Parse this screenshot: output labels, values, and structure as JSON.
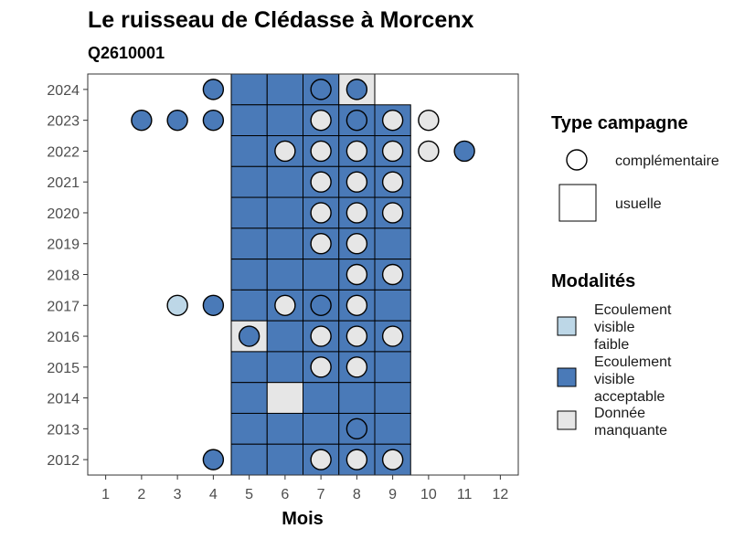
{
  "chart_data": {
    "type": "heatmap",
    "title": "Le ruisseau de Clédasse à Morcenx",
    "subtitle": "Q2610001",
    "xlabel": "Mois",
    "ylabel": "",
    "x_ticks": [
      1,
      2,
      3,
      4,
      5,
      6,
      7,
      8,
      9,
      10,
      11,
      12
    ],
    "y_ticks": [
      2012,
      2013,
      2014,
      2015,
      2016,
      2017,
      2018,
      2019,
      2020,
      2021,
      2022,
      2023,
      2024
    ],
    "xlim": [
      0.5,
      12.5
    ],
    "ylim": [
      2011.5,
      2024.5
    ],
    "colors": {
      "faible": "#bdd7e7",
      "acceptable": "#4a7ab8",
      "manquante": "#e6e6e6"
    },
    "legend_type": {
      "title": "Type campagne",
      "items": [
        {
          "shape": "circle",
          "label": "complémentaire"
        },
        {
          "shape": "square",
          "label": "usuelle"
        }
      ]
    },
    "legend_modalites": {
      "title": "Modalités",
      "items": [
        {
          "key": "faible",
          "lines": [
            "Ecoulement",
            "visible",
            "faible"
          ]
        },
        {
          "key": "acceptable",
          "lines": [
            "Ecoulement",
            "visible",
            "acceptable"
          ]
        },
        {
          "key": "manquante",
          "lines": [
            "Donnée",
            "manquante"
          ]
        }
      ]
    },
    "squares": [
      {
        "year": 2024,
        "month": 5,
        "m": "acceptable"
      },
      {
        "year": 2024,
        "month": 6,
        "m": "acceptable"
      },
      {
        "year": 2024,
        "month": 7,
        "m": "acceptable"
      },
      {
        "year": 2024,
        "month": 8,
        "m": "manquante"
      },
      {
        "year": 2023,
        "month": 5,
        "m": "acceptable"
      },
      {
        "year": 2023,
        "month": 6,
        "m": "acceptable"
      },
      {
        "year": 2023,
        "month": 7,
        "m": "acceptable"
      },
      {
        "year": 2023,
        "month": 8,
        "m": "acceptable"
      },
      {
        "year": 2023,
        "month": 9,
        "m": "acceptable"
      },
      {
        "year": 2022,
        "month": 5,
        "m": "acceptable"
      },
      {
        "year": 2022,
        "month": 6,
        "m": "acceptable"
      },
      {
        "year": 2022,
        "month": 7,
        "m": "acceptable"
      },
      {
        "year": 2022,
        "month": 8,
        "m": "acceptable"
      },
      {
        "year": 2022,
        "month": 9,
        "m": "acceptable"
      },
      {
        "year": 2021,
        "month": 5,
        "m": "acceptable"
      },
      {
        "year": 2021,
        "month": 6,
        "m": "acceptable"
      },
      {
        "year": 2021,
        "month": 7,
        "m": "acceptable"
      },
      {
        "year": 2021,
        "month": 8,
        "m": "acceptable"
      },
      {
        "year": 2021,
        "month": 9,
        "m": "acceptable"
      },
      {
        "year": 2020,
        "month": 5,
        "m": "acceptable"
      },
      {
        "year": 2020,
        "month": 6,
        "m": "acceptable"
      },
      {
        "year": 2020,
        "month": 7,
        "m": "acceptable"
      },
      {
        "year": 2020,
        "month": 8,
        "m": "acceptable"
      },
      {
        "year": 2020,
        "month": 9,
        "m": "acceptable"
      },
      {
        "year": 2019,
        "month": 5,
        "m": "acceptable"
      },
      {
        "year": 2019,
        "month": 6,
        "m": "acceptable"
      },
      {
        "year": 2019,
        "month": 7,
        "m": "acceptable"
      },
      {
        "year": 2019,
        "month": 8,
        "m": "acceptable"
      },
      {
        "year": 2019,
        "month": 9,
        "m": "acceptable"
      },
      {
        "year": 2018,
        "month": 5,
        "m": "acceptable"
      },
      {
        "year": 2018,
        "month": 6,
        "m": "acceptable"
      },
      {
        "year": 2018,
        "month": 7,
        "m": "acceptable"
      },
      {
        "year": 2018,
        "month": 8,
        "m": "acceptable"
      },
      {
        "year": 2018,
        "month": 9,
        "m": "acceptable"
      },
      {
        "year": 2017,
        "month": 5,
        "m": "acceptable"
      },
      {
        "year": 2017,
        "month": 6,
        "m": "acceptable"
      },
      {
        "year": 2017,
        "month": 7,
        "m": "acceptable"
      },
      {
        "year": 2017,
        "month": 8,
        "m": "acceptable"
      },
      {
        "year": 2017,
        "month": 9,
        "m": "acceptable"
      },
      {
        "year": 2016,
        "month": 5,
        "m": "manquante"
      },
      {
        "year": 2016,
        "month": 6,
        "m": "acceptable"
      },
      {
        "year": 2016,
        "month": 7,
        "m": "acceptable"
      },
      {
        "year": 2016,
        "month": 8,
        "m": "acceptable"
      },
      {
        "year": 2016,
        "month": 9,
        "m": "acceptable"
      },
      {
        "year": 2015,
        "month": 5,
        "m": "acceptable"
      },
      {
        "year": 2015,
        "month": 6,
        "m": "acceptable"
      },
      {
        "year": 2015,
        "month": 7,
        "m": "acceptable"
      },
      {
        "year": 2015,
        "month": 8,
        "m": "acceptable"
      },
      {
        "year": 2015,
        "month": 9,
        "m": "acceptable"
      },
      {
        "year": 2014,
        "month": 5,
        "m": "acceptable"
      },
      {
        "year": 2014,
        "month": 6,
        "m": "manquante"
      },
      {
        "year": 2014,
        "month": 7,
        "m": "acceptable"
      },
      {
        "year": 2014,
        "month": 8,
        "m": "acceptable"
      },
      {
        "year": 2014,
        "month": 9,
        "m": "acceptable"
      },
      {
        "year": 2013,
        "month": 5,
        "m": "acceptable"
      },
      {
        "year": 2013,
        "month": 6,
        "m": "acceptable"
      },
      {
        "year": 2013,
        "month": 7,
        "m": "acceptable"
      },
      {
        "year": 2013,
        "month": 8,
        "m": "acceptable"
      },
      {
        "year": 2013,
        "month": 9,
        "m": "acceptable"
      },
      {
        "year": 2012,
        "month": 5,
        "m": "acceptable"
      },
      {
        "year": 2012,
        "month": 6,
        "m": "acceptable"
      },
      {
        "year": 2012,
        "month": 7,
        "m": "acceptable"
      },
      {
        "year": 2012,
        "month": 8,
        "m": "acceptable"
      },
      {
        "year": 2012,
        "month": 9,
        "m": "acceptable"
      }
    ],
    "circles": [
      {
        "year": 2024,
        "month": 4,
        "m": "acceptable"
      },
      {
        "year": 2024,
        "month": 7,
        "m": "acceptable"
      },
      {
        "year": 2024,
        "month": 8,
        "m": "acceptable"
      },
      {
        "year": 2023,
        "month": 2,
        "m": "acceptable"
      },
      {
        "year": 2023,
        "month": 3,
        "m": "acceptable"
      },
      {
        "year": 2023,
        "month": 4,
        "m": "acceptable"
      },
      {
        "year": 2023,
        "month": 7,
        "m": "manquante"
      },
      {
        "year": 2023,
        "month": 8,
        "m": "acceptable"
      },
      {
        "year": 2023,
        "month": 9,
        "m": "manquante"
      },
      {
        "year": 2023,
        "month": 10,
        "m": "manquante"
      },
      {
        "year": 2022,
        "month": 6,
        "m": "manquante"
      },
      {
        "year": 2022,
        "month": 7,
        "m": "manquante"
      },
      {
        "year": 2022,
        "month": 8,
        "m": "manquante"
      },
      {
        "year": 2022,
        "month": 9,
        "m": "manquante"
      },
      {
        "year": 2022,
        "month": 10,
        "m": "manquante"
      },
      {
        "year": 2022,
        "month": 11,
        "m": "acceptable"
      },
      {
        "year": 2021,
        "month": 7,
        "m": "manquante"
      },
      {
        "year": 2021,
        "month": 8,
        "m": "manquante"
      },
      {
        "year": 2021,
        "month": 9,
        "m": "manquante"
      },
      {
        "year": 2020,
        "month": 7,
        "m": "manquante"
      },
      {
        "year": 2020,
        "month": 8,
        "m": "manquante"
      },
      {
        "year": 2020,
        "month": 9,
        "m": "manquante"
      },
      {
        "year": 2019,
        "month": 7,
        "m": "manquante"
      },
      {
        "year": 2019,
        "month": 8,
        "m": "manquante"
      },
      {
        "year": 2018,
        "month": 8,
        "m": "manquante"
      },
      {
        "year": 2018,
        "month": 9,
        "m": "manquante"
      },
      {
        "year": 2017,
        "month": 3,
        "m": "faible"
      },
      {
        "year": 2017,
        "month": 4,
        "m": "acceptable"
      },
      {
        "year": 2017,
        "month": 6,
        "m": "manquante"
      },
      {
        "year": 2017,
        "month": 7,
        "m": "acceptable"
      },
      {
        "year": 2017,
        "month": 8,
        "m": "manquante"
      },
      {
        "year": 2016,
        "month": 5,
        "m": "acceptable"
      },
      {
        "year": 2016,
        "month": 7,
        "m": "manquante"
      },
      {
        "year": 2016,
        "month": 8,
        "m": "manquante"
      },
      {
        "year": 2016,
        "month": 9,
        "m": "manquante"
      },
      {
        "year": 2015,
        "month": 7,
        "m": "manquante"
      },
      {
        "year": 2015,
        "month": 8,
        "m": "manquante"
      },
      {
        "year": 2013,
        "month": 8,
        "m": "acceptable"
      },
      {
        "year": 2012,
        "month": 4,
        "m": "acceptable"
      },
      {
        "year": 2012,
        "month": 7,
        "m": "manquante"
      },
      {
        "year": 2012,
        "month": 8,
        "m": "manquante"
      },
      {
        "year": 2012,
        "month": 9,
        "m": "manquante"
      }
    ]
  }
}
